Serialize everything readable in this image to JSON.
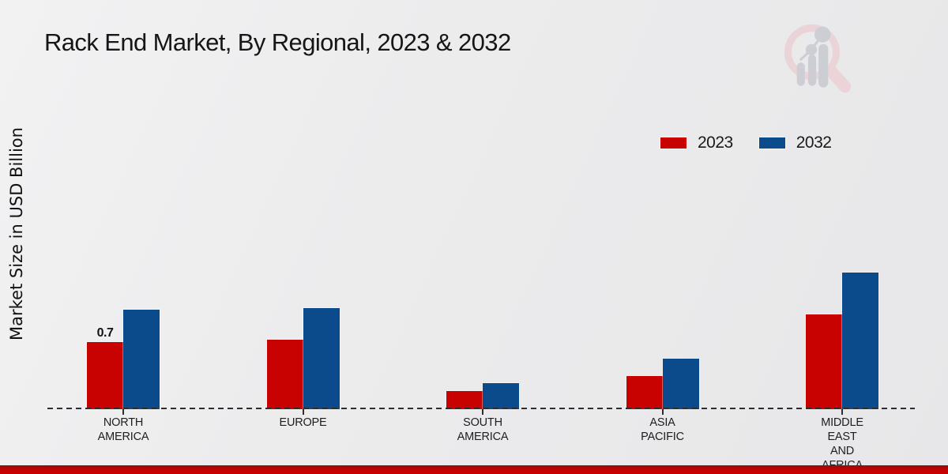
{
  "title": "Rack End Market, By Regional, 2023 & 2032",
  "y_axis_label": "Market Size in USD Billion",
  "legend": {
    "items": [
      {
        "label": "2023",
        "color": "#c80101"
      },
      {
        "label": "2032",
        "color": "#0b4b8c"
      }
    ]
  },
  "watermark_icon": "magnifier-bar-chart-logo",
  "accent_colors": {
    "series_2023": "#c80101",
    "series_2032": "#0b4b8c",
    "footer_strip": "#c30101",
    "baseline_dash": "#2e2e2e",
    "background": "#ececed"
  },
  "chart_data": {
    "type": "bar",
    "title": "Rack End Market, By Regional, 2023 & 2032",
    "xlabel": "",
    "ylabel": "Market Size in USD Billion",
    "categories": [
      "NORTH AMERICA",
      "EUROPE",
      "SOUTH AMERICA",
      "ASIA PACIFIC",
      "MIDDLE EAST AND AFRICA"
    ],
    "category_label_lines": [
      [
        "NORTH",
        "AMERICA"
      ],
      [
        "EUROPE"
      ],
      [
        "SOUTH",
        "AMERICA"
      ],
      [
        "ASIA",
        "PACIFIC"
      ],
      [
        "MIDDLE",
        "EAST",
        "AND",
        "AFRICA"
      ]
    ],
    "series": [
      {
        "name": "2023",
        "color": "#c80101",
        "values": [
          0.7,
          0.73,
          0.19,
          0.35,
          0.99
        ],
        "data_labels": [
          "0.7",
          null,
          null,
          null,
          null
        ]
      },
      {
        "name": "2032",
        "color": "#0b4b8c",
        "values": [
          1.04,
          1.06,
          0.27,
          0.53,
          1.43
        ],
        "data_labels": [
          null,
          null,
          null,
          null,
          null
        ]
      }
    ],
    "ylim": [
      0,
      1.6
    ],
    "grid": false,
    "axis_style": "dashed-baseline-only",
    "legend_position": "upper-right"
  }
}
